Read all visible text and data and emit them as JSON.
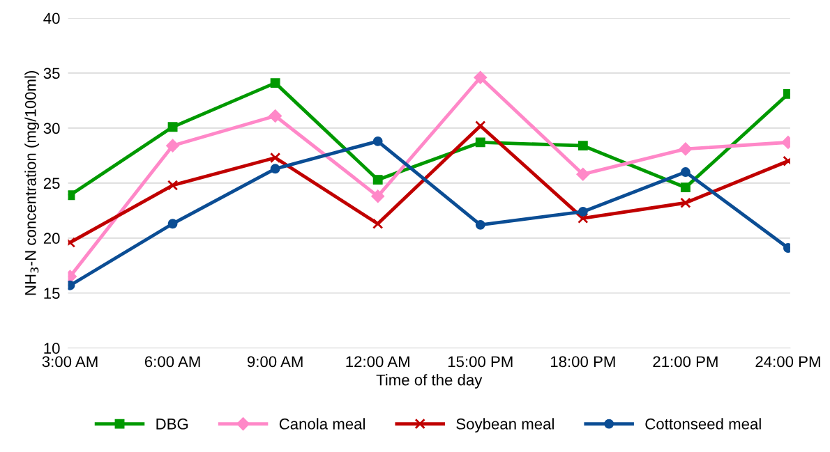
{
  "chart_data": {
    "type": "line",
    "xlabel": "Time of the day",
    "ylabel": "NH$_{3}$-N concentration (mg/100ml)",
    "categories": [
      "3:00 AM",
      "6:00 AM",
      "9:00 AM",
      "12:00 AM",
      "15:00 PM",
      "18:00 PM",
      "21:00 PM",
      "24:00 PM"
    ],
    "series": [
      {
        "name": "DBG",
        "color": "#009900",
        "marker": "square",
        "values": [
          23.9,
          30.1,
          34.1,
          25.3,
          28.7,
          28.4,
          24.6,
          33.1
        ]
      },
      {
        "name": "Canola meal",
        "color": "#ff88c8",
        "marker": "diamond",
        "values": [
          16.5,
          28.4,
          31.1,
          23.8,
          34.6,
          25.8,
          28.1,
          28.7
        ]
      },
      {
        "name": "Soybean meal",
        "color": "#c00000",
        "marker": "cross",
        "values": [
          19.6,
          24.8,
          27.3,
          21.3,
          30.2,
          21.8,
          23.2,
          27.0
        ]
      },
      {
        "name": "Cottonseed meal",
        "color": "#0b4d94",
        "marker": "circle",
        "values": [
          15.7,
          21.3,
          26.3,
          28.8,
          21.2,
          22.4,
          26.0,
          19.1
        ]
      }
    ],
    "ylim": [
      10,
      40
    ],
    "yticks": [
      10,
      15,
      20,
      25,
      30,
      35,
      40
    ],
    "grid": "y",
    "legend": "bottom",
    "line_style": "solid"
  }
}
